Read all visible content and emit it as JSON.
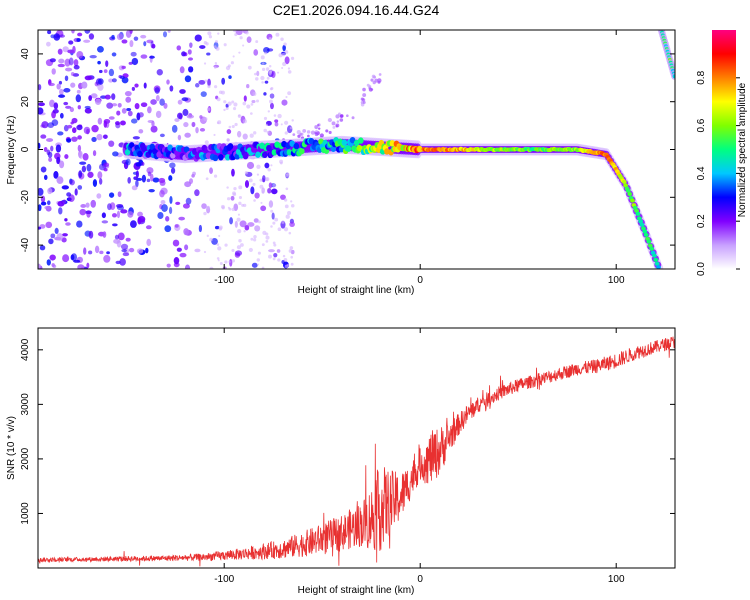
{
  "title": "C2E1.2026.094.16.44.G24",
  "chart_data": [
    {
      "type": "heatmap",
      "xlabel": "Height of straight line (km)",
      "ylabel": "Frequency (Hz)",
      "xlim": [
        -195,
        130
      ],
      "ylim": [
        -50,
        50
      ],
      "xticks": [
        -100,
        0,
        100
      ],
      "yticks": [
        -40,
        -20,
        0,
        20,
        40
      ],
      "xtick_labels": [
        "-100",
        "0",
        "100"
      ],
      "ytick_labels": [
        "-40",
        "-20",
        "0",
        "20",
        "40"
      ],
      "colorbar": {
        "label": "Normalized spectral amplitude",
        "range": [
          0,
          1
        ],
        "ticks": [
          0.0,
          0.2,
          0.4,
          0.6,
          0.8
        ],
        "tick_labels": [
          "0.0",
          "0.2",
          "0.4",
          "0.6",
          "0.8"
        ],
        "colors": [
          "#ffffff",
          "#c8a0ff",
          "#8000ff",
          "#0000ff",
          "#00c8ff",
          "#00ff80",
          "#80ff00",
          "#ffff00",
          "#ff8000",
          "#ff0000",
          "#ff0080"
        ]
      },
      "ridge": [
        {
          "x": -150,
          "y": 0,
          "amp": 0.3
        },
        {
          "x": -120,
          "y": -2,
          "amp": 0.25
        },
        {
          "x": -100,
          "y": -1,
          "amp": 0.3
        },
        {
          "x": -80,
          "y": 0,
          "amp": 0.35
        },
        {
          "x": -60,
          "y": 1,
          "amp": 0.4
        },
        {
          "x": -40,
          "y": 2,
          "amp": 0.45
        },
        {
          "x": -20,
          "y": 1,
          "amp": 0.6
        },
        {
          "x": 0,
          "y": 0,
          "amp": 0.8
        },
        {
          "x": 20,
          "y": 0,
          "amp": 0.75
        },
        {
          "x": 40,
          "y": 0,
          "amp": 0.6
        },
        {
          "x": 60,
          "y": 0,
          "amp": 0.55
        },
        {
          "x": 80,
          "y": 0,
          "amp": 0.6
        },
        {
          "x": 95,
          "y": -2,
          "amp": 0.85
        },
        {
          "x": 105,
          "y": -15,
          "amp": 0.6
        },
        {
          "x": 115,
          "y": -35,
          "amp": 0.5
        },
        {
          "x": 122,
          "y": -50,
          "amp": 0.45
        }
      ],
      "secondary_trace": [
        {
          "x": 123,
          "y": 50,
          "amp": 0.5
        },
        {
          "x": 130,
          "y": 30,
          "amp": 0.5
        }
      ],
      "diverging_branch": [
        {
          "x": -70,
          "y": 2
        },
        {
          "x": -50,
          "y": 8
        },
        {
          "x": -35,
          "y": 15
        },
        {
          "x": -20,
          "y": 32
        }
      ]
    },
    {
      "type": "line",
      "xlabel": "Height of straight line (km)",
      "ylabel": "SNR (10 * v/v)",
      "xlim": [
        -195,
        130
      ],
      "ylim": [
        0,
        4400
      ],
      "xticks": [
        -100,
        0,
        100
      ],
      "yticks": [
        1000,
        2000,
        3000,
        4000
      ],
      "xtick_labels": [
        "-100",
        "0",
        "100"
      ],
      "ytick_labels": [
        "1000",
        "2000",
        "3000",
        "4000"
      ],
      "series": [
        {
          "name": "SNR",
          "color": "#e83030",
          "x": [
            -195,
            -170,
            -150,
            -130,
            -110,
            -90,
            -70,
            -55,
            -40,
            -30,
            -25,
            -20,
            -15,
            -10,
            -5,
            0,
            5,
            10,
            15,
            20,
            25,
            30,
            40,
            50,
            60,
            70,
            80,
            90,
            100,
            110,
            120,
            130
          ],
          "y": [
            150,
            160,
            170,
            180,
            200,
            260,
            350,
            480,
            650,
            800,
            900,
            1100,
            1200,
            1300,
            1600,
            1900,
            2000,
            2150,
            2400,
            2650,
            2850,
            3000,
            3200,
            3350,
            3450,
            3550,
            3650,
            3700,
            3800,
            3950,
            4050,
            4150
          ],
          "noise": [
            40,
            40,
            50,
            50,
            70,
            110,
            180,
            260,
            330,
            420,
            600,
            800,
            600,
            450,
            350,
            300,
            500,
            450,
            300,
            200,
            180,
            150,
            130,
            120,
            120,
            120,
            120,
            130,
            140,
            130,
            120,
            120
          ]
        }
      ]
    }
  ]
}
